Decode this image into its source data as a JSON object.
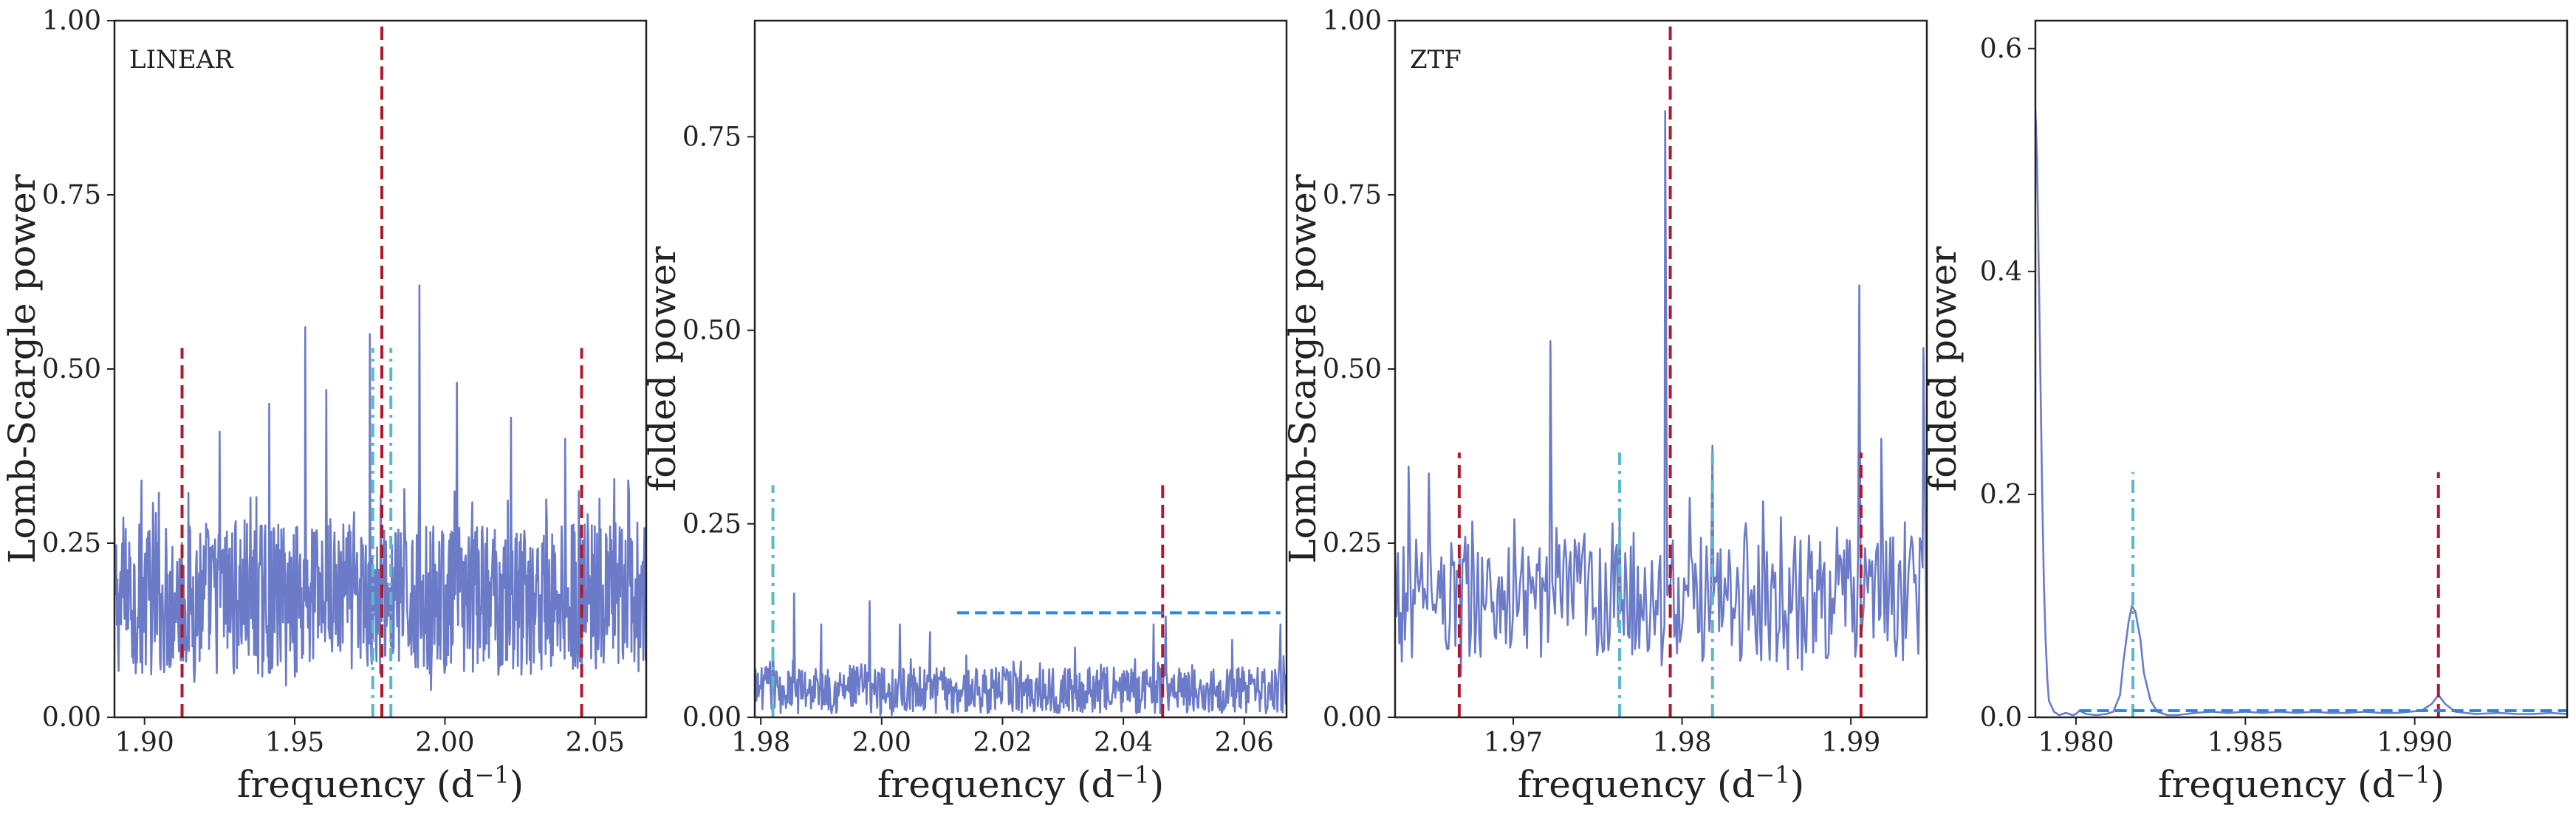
{
  "colors": {
    "series": "#6b7bc8",
    "red_dashed": "#b2182b",
    "cyan_dashdot": "#5bb8c8",
    "blue_dashed": "#2e86de",
    "axes": "#222222"
  },
  "chart_data": [
    {
      "type": "line",
      "panel_label": "LINEAR",
      "xlabel": "frequency (d$^{-1}$)",
      "ylabel": "Lomb-Scargle power",
      "xlim": [
        1.89,
        2.067
      ],
      "ylim": [
        0.0,
        1.0
      ],
      "xticks": [
        1.9,
        1.95,
        2.0,
        2.05
      ],
      "xtick_labels": [
        "1.90",
        "1.95",
        "2.00",
        "2.05"
      ],
      "yticks": [
        0.0,
        0.25,
        0.5,
        0.75,
        1.0
      ],
      "ytick_labels": [
        "0.00",
        "0.25",
        "0.50",
        "0.75",
        "1.00"
      ],
      "grid": false,
      "series": [
        {
          "style": "dense-noise",
          "x_range": [
            1.89,
            2.067
          ],
          "baseline": 0.17,
          "spread": 0.11,
          "n_points": 900,
          "peaks": [
            [
              1.9535,
              0.56
            ],
            [
              1.975,
              0.55
            ],
            [
              1.9915,
              0.62
            ],
            [
              1.9415,
              0.45
            ],
            [
              1.9605,
              0.47
            ],
            [
              2.004,
              0.48
            ],
            [
              1.925,
              0.41
            ],
            [
              2.022,
              0.43
            ],
            [
              1.899,
              0.34
            ],
            [
              2.04,
              0.4
            ],
            [
              2.061,
              0.34
            ]
          ]
        }
      ],
      "vlines": [
        {
          "x": 1.9125,
          "ymax": 0.53,
          "style": "red-dashed"
        },
        {
          "x": 1.979,
          "ymax": 1.0,
          "style": "red-dashed"
        },
        {
          "x": 2.0455,
          "ymax": 0.53,
          "style": "red-dashed"
        },
        {
          "x": 1.976,
          "ymax": 0.53,
          "style": "cyan-dashdot"
        },
        {
          "x": 1.982,
          "ymax": 0.53,
          "style": "cyan-dashdot"
        }
      ],
      "hlines": []
    },
    {
      "type": "line",
      "panel_label": "",
      "xlabel": "frequency (d$^{-1}$)",
      "ylabel": "folded power",
      "xlim": [
        1.979,
        2.067
      ],
      "ylim": [
        0.0,
        0.9
      ],
      "xticks": [
        1.98,
        2.0,
        2.02,
        2.04,
        2.06
      ],
      "xtick_labels": [
        "1.98",
        "2.00",
        "2.02",
        "2.04",
        "2.06"
      ],
      "yticks": [
        0.0,
        0.25,
        0.5,
        0.75
      ],
      "ytick_labels": [
        "0.00",
        "0.25",
        "0.50",
        "0.75"
      ],
      "grid": false,
      "series": [
        {
          "style": "dense-noise",
          "x_range": [
            1.979,
            2.067
          ],
          "baseline": 0.035,
          "spread": 0.03,
          "n_points": 700,
          "peaks": [
            [
              1.982,
              0.09
            ],
            [
              1.9855,
              0.16
            ],
            [
              1.99,
              0.12
            ],
            [
              1.998,
              0.15
            ],
            [
              2.003,
              0.12
            ],
            [
              2.008,
              0.11
            ],
            [
              2.014,
              0.08
            ],
            [
              2.032,
              0.09
            ],
            [
              2.045,
              0.12
            ],
            [
              2.047,
              0.13
            ],
            [
              2.058,
              0.1
            ],
            [
              2.066,
              0.12
            ]
          ]
        }
      ],
      "vlines": [
        {
          "x": 1.982,
          "ymax": 0.3,
          "style": "cyan-dashdot"
        },
        {
          "x": 2.0465,
          "ymax": 0.3,
          "style": "red-dashed"
        }
      ],
      "hlines": [
        {
          "y": 0.135,
          "xmin": 2.0125,
          "xmax": 2.066,
          "style": "blue-dashed"
        }
      ]
    },
    {
      "type": "line",
      "panel_label": "ZTF",
      "xlabel": "frequency (d$^{-1}$)",
      "ylabel": "Lomb-Scargle power",
      "xlim": [
        1.963,
        1.9945
      ],
      "ylim": [
        0.0,
        1.0
      ],
      "xticks": [
        1.97,
        1.98,
        1.99
      ],
      "xtick_labels": [
        "1.97",
        "1.98",
        "1.99"
      ],
      "yticks": [
        0.0,
        0.25,
        0.5,
        0.75,
        1.0
      ],
      "ytick_labels": [
        "0.00",
        "0.25",
        "0.50",
        "0.75",
        "1.00"
      ],
      "grid": false,
      "series": [
        {
          "style": "dense-noise",
          "x_range": [
            1.963,
            1.9945
          ],
          "baseline": 0.17,
          "spread": 0.09,
          "n_points": 380,
          "peaks": [
            [
              1.9634,
              0.08
            ],
            [
              1.9638,
              0.36
            ],
            [
              1.965,
              0.35
            ],
            [
              1.9722,
              0.54
            ],
            [
              1.979,
              0.87
            ],
            [
              1.9818,
              0.39
            ],
            [
              1.9848,
              0.31
            ],
            [
              1.9905,
              0.62
            ],
            [
              1.9918,
              0.4
            ],
            [
              1.9932,
              0.28
            ],
            [
              1.9943,
              0.53
            ],
            [
              1.9669,
              0.06
            ]
          ]
        }
      ],
      "vlines": [
        {
          "x": 1.9668,
          "ymax": 0.38,
          "style": "red-dashed"
        },
        {
          "x": 1.9793,
          "ymax": 1.0,
          "style": "red-dashed"
        },
        {
          "x": 1.9906,
          "ymax": 0.38,
          "style": "red-dashed"
        },
        {
          "x": 1.9763,
          "ymax": 0.38,
          "style": "cyan-dashdot"
        },
        {
          "x": 1.9818,
          "ymax": 0.38,
          "style": "cyan-dashdot"
        }
      ],
      "hlines": []
    },
    {
      "type": "line",
      "panel_label": "",
      "xlabel": "frequency (d$^{-1}$)",
      "ylabel": "folded power",
      "xlim": [
        1.9788,
        1.9945
      ],
      "ylim": [
        0.0,
        0.625
      ],
      "xticks": [
        1.98,
        1.985,
        1.99
      ],
      "xtick_labels": [
        "1.980",
        "1.985",
        "1.990"
      ],
      "yticks": [
        0.0,
        0.2,
        0.4,
        0.6
      ],
      "ytick_labels": [
        "0.0",
        "0.2",
        "0.4",
        "0.6"
      ],
      "grid": false,
      "series": [
        {
          "style": "smooth",
          "points": [
            [
              1.9788,
              0.545
            ],
            [
              1.97885,
              0.5
            ],
            [
              1.9789,
              0.4
            ],
            [
              1.97895,
              0.3
            ],
            [
              1.979,
              0.2
            ],
            [
              1.97905,
              0.12
            ],
            [
              1.9791,
              0.07
            ],
            [
              1.97915,
              0.035
            ],
            [
              1.9792,
              0.015
            ],
            [
              1.97935,
              0.005
            ],
            [
              1.9795,
              0.002
            ],
            [
              1.9797,
              0.004
            ],
            [
              1.9799,
              0.002
            ],
            [
              1.98,
              0.003
            ],
            [
              1.9801,
              0.006
            ],
            [
              1.9803,
              0.003
            ],
            [
              1.9806,
              0.002
            ],
            [
              1.9809,
              0.003
            ],
            [
              1.9811,
              0.005
            ],
            [
              1.9813,
              0.02
            ],
            [
              1.9814,
              0.05
            ],
            [
              1.98155,
              0.085
            ],
            [
              1.98165,
              0.1
            ],
            [
              1.98175,
              0.095
            ],
            [
              1.9819,
              0.07
            ],
            [
              1.982,
              0.04
            ],
            [
              1.9822,
              0.015
            ],
            [
              1.9824,
              0.005
            ],
            [
              1.9827,
              0.002
            ],
            [
              1.983,
              0.002
            ],
            [
              1.9835,
              0.004
            ],
            [
              1.984,
              0.005
            ],
            [
              1.9845,
              0.004
            ],
            [
              1.985,
              0.005
            ],
            [
              1.9855,
              0.004
            ],
            [
              1.986,
              0.005
            ],
            [
              1.9865,
              0.004
            ],
            [
              1.987,
              0.005
            ],
            [
              1.9875,
              0.004
            ],
            [
              1.988,
              0.004
            ],
            [
              1.9885,
              0.005
            ],
            [
              1.989,
              0.004
            ],
            [
              1.9895,
              0.004
            ],
            [
              1.9902,
              0.006
            ],
            [
              1.9905,
              0.012
            ],
            [
              1.9907,
              0.02
            ],
            [
              1.9909,
              0.012
            ],
            [
              1.9912,
              0.005
            ],
            [
              1.9918,
              0.003
            ],
            [
              1.9925,
              0.004
            ],
            [
              1.993,
              0.003
            ],
            [
              1.9935,
              0.003
            ],
            [
              1.994,
              0.004
            ],
            [
              1.9945,
              0.003
            ]
          ]
        }
      ],
      "vlines": [
        {
          "x": 1.98168,
          "ymax": 0.22,
          "style": "cyan-dashdot"
        },
        {
          "x": 1.9907,
          "ymax": 0.22,
          "style": "red-dashed"
        }
      ],
      "hlines": [
        {
          "y": 0.006,
          "xmin": 1.9801,
          "xmax": 1.9945,
          "style": "blue-dashed"
        }
      ]
    }
  ]
}
